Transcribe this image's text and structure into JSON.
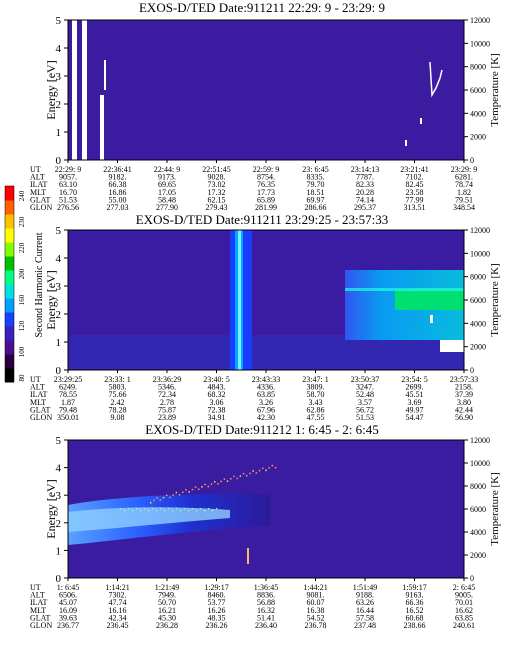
{
  "colorbar": {
    "label": "Second Harmonic Current",
    "ticks": [
      "240",
      "230",
      "220",
      "200",
      "160",
      "120",
      "100",
      "80"
    ],
    "colors": [
      "#000000",
      "#2a0040",
      "#4a1090",
      "#3a20c0",
      "#1a40ff",
      "#00a0ff",
      "#00e0e0",
      "#00ff80",
      "#00c000",
      "#80ff00",
      "#ffff00",
      "#ffc000",
      "#ff6000",
      "#ff0000"
    ]
  },
  "chart_data": [
    {
      "type": "heatmap",
      "title": "EXOS-D/TED   Date:911211  22:29: 9 - 23:29: 9",
      "ylabel": "Energy [eV]",
      "y2label": "Temperature [K]",
      "ylim": [
        0,
        5
      ],
      "y2lim": [
        0,
        12000
      ],
      "y_ticks": [
        "0",
        "1",
        "2",
        "3",
        "4",
        "5"
      ],
      "y2_ticks": [
        "0",
        "2000",
        "4000",
        "6000",
        "8000",
        "10000",
        "12000"
      ],
      "x_ticks": [
        "22:29: 9",
        "22:36:41",
        "22:44: 9",
        "22:51:45",
        "22:59: 9",
        "23: 6:45",
        "23:14:13",
        "23:21:41",
        "23:29: 9"
      ],
      "rows": [
        {
          "label": "UT",
          "values": [
            "22:29: 9",
            "22:36:41",
            "22:44: 9",
            "22:51:45",
            "22:59: 9",
            "23: 6:45",
            "23:14:13",
            "23:21:41",
            "23:29: 9"
          ]
        },
        {
          "label": "ALT",
          "values": [
            "9057.",
            "9182.",
            "9173.",
            "9028.",
            "8754.",
            "8335.",
            "7787.",
            "7102.",
            "6281."
          ]
        },
        {
          "label": "ILAT",
          "values": [
            "63.10",
            "66.38",
            "69.65",
            "73.02",
            "76.35",
            "79.70",
            "82.33",
            "82.45",
            "78.74"
          ]
        },
        {
          "label": "MLT",
          "values": [
            "16.70",
            "16.86",
            "17.05",
            "17.32",
            "17.73",
            "18.51",
            "20.28",
            "23.58",
            "1.82"
          ]
        },
        {
          "label": "GLAT",
          "values": [
            "51.53",
            "55.00",
            "58.48",
            "62.15",
            "65.89",
            "69.97",
            "74.14",
            "77.99",
            "79.51"
          ]
        },
        {
          "label": "GLON",
          "values": [
            "276.56",
            "277.03",
            "277.90",
            "279.43",
            "281.99",
            "286.66",
            "295.37",
            "313.51",
            "348.54"
          ]
        }
      ]
    },
    {
      "type": "heatmap",
      "title": "EXOS-D/TED   Date:911211  23:29:25 - 23:57:33",
      "ylabel": "Energy [eV]",
      "y2label": "Temperature [K]",
      "ylim": [
        0,
        5
      ],
      "y2lim": [
        0,
        12000
      ],
      "y_ticks": [
        "0",
        "1",
        "2",
        "3",
        "4",
        "5"
      ],
      "y2_ticks": [
        "0",
        "2000",
        "4000",
        "6000",
        "8000",
        "10000",
        "12000"
      ],
      "x_ticks": [
        "23:29:25",
        "23:33: 1",
        "23:36:29",
        "23:40: 5",
        "23:43:33",
        "23:47: 1",
        "23:50:37",
        "23:54: 5",
        "23:57:33"
      ],
      "rows": [
        {
          "label": "UT",
          "values": [
            "23:29:25",
            "23:33: 1",
            "23:36:29",
            "23:40: 5",
            "23:43:33",
            "23:47: 1",
            "23:50:37",
            "23:54: 5",
            "23:57:33"
          ]
        },
        {
          "label": "ALT",
          "values": [
            "6249.",
            "5803.",
            "5346.",
            "4843.",
            "4336.",
            "3809.",
            "3247.",
            "2699.",
            "2158."
          ]
        },
        {
          "label": "ILAT",
          "values": [
            "78.55",
            "75.66",
            "72.34",
            "68.32",
            "63.85",
            "58.70",
            "52.48",
            "45.51",
            "37.39"
          ]
        },
        {
          "label": "MLT",
          "values": [
            "1.87",
            "2.42",
            "2.78",
            "3.06",
            "3.26",
            "3.43",
            "3.57",
            "3.69",
            "3.80"
          ]
        },
        {
          "label": "GLAT",
          "values": [
            "79.48",
            "78.28",
            "75.87",
            "72.38",
            "67.96",
            "62.86",
            "56.72",
            "49.97",
            "42.44"
          ]
        },
        {
          "label": "GLON",
          "values": [
            "350.01",
            "9.08",
            "23.89",
            "34.91",
            "42.30",
            "47.55",
            "51.53",
            "54.47",
            "56.90"
          ]
        }
      ]
    },
    {
      "type": "heatmap",
      "title": "EXOS-D/TED   Date:911212  1: 6:45 - 2: 6:45",
      "ylabel": "Energy [eV]",
      "y2label": "Temperature [K]",
      "ylim": [
        0,
        5
      ],
      "y2lim": [
        0,
        12000
      ],
      "y_ticks": [
        "0",
        "1",
        "2",
        "3",
        "4",
        "5"
      ],
      "y2_ticks": [
        "0",
        "2000",
        "4000",
        "6000",
        "8000",
        "10000",
        "12000"
      ],
      "x_ticks": [
        "1: 6:45",
        "1:14:21",
        "1:21:49",
        "1:29:17",
        "1:36:45",
        "1:44:21",
        "1:51:49",
        "1:59:17",
        "2: 6:45"
      ],
      "rows": [
        {
          "label": "UT",
          "values": [
            "1: 6:45",
            "1:14:21",
            "1:21:49",
            "1:29:17",
            "1:36:45",
            "1:44:21",
            "1:51:49",
            "1:59:17",
            "2: 6:45"
          ]
        },
        {
          "label": "ALT",
          "values": [
            "6506.",
            "7302.",
            "7949.",
            "8460.",
            "8836.",
            "9081.",
            "9188.",
            "9163.",
            "9005."
          ]
        },
        {
          "label": "ILAT",
          "values": [
            "45.07",
            "47.74",
            "50.70",
            "53.77",
            "56.88",
            "60.07",
            "63.26",
            "66.36",
            "70.01"
          ]
        },
        {
          "label": "MLT",
          "values": [
            "16.09",
            "16.16",
            "16.21",
            "16.26",
            "16.32",
            "16.38",
            "16.44",
            "16.52",
            "16.62"
          ]
        },
        {
          "label": "GLAT",
          "values": [
            "39.63",
            "42.34",
            "45.30",
            "48.35",
            "51.41",
            "54.52",
            "57.58",
            "60.68",
            "63.85"
          ]
        },
        {
          "label": "GLON",
          "values": [
            "236.77",
            "236.45",
            "236.28",
            "236.26",
            "236.40",
            "236.78",
            "237.48",
            "238.66",
            "240.61"
          ]
        }
      ]
    }
  ]
}
